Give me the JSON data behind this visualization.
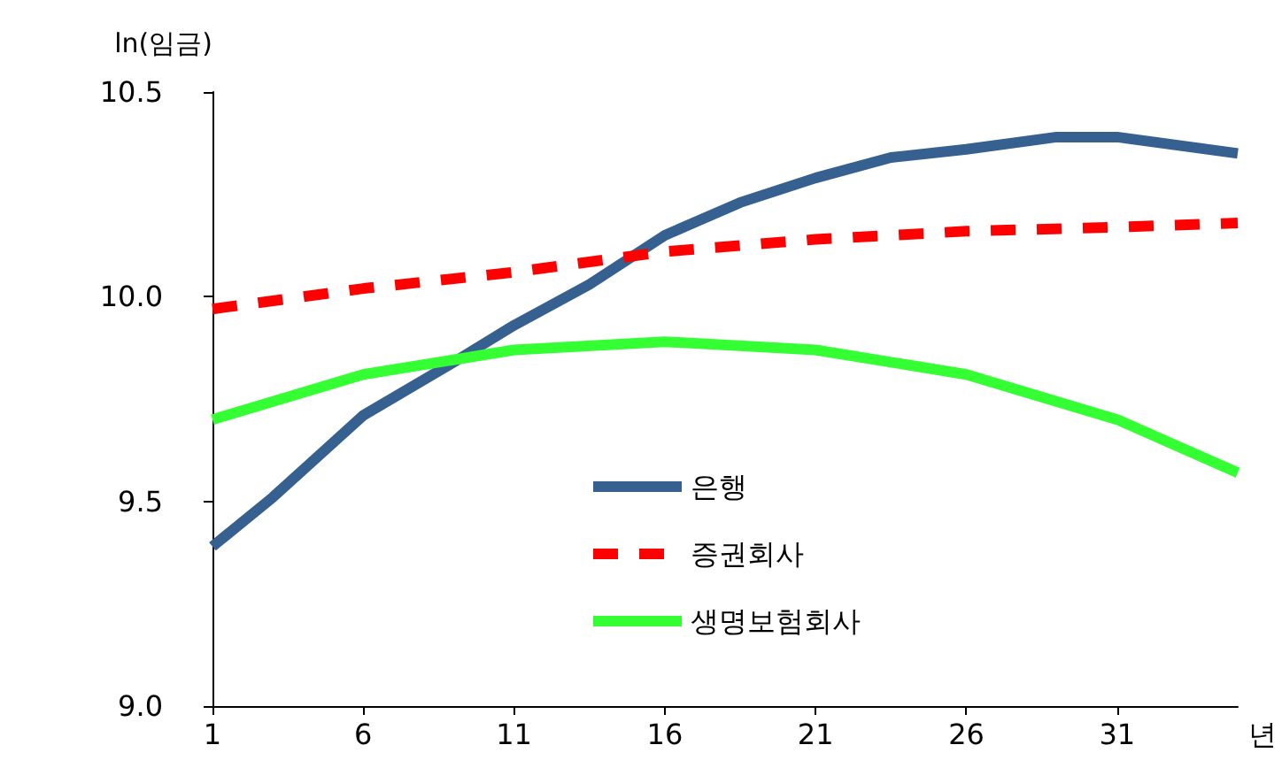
{
  "chart_data": {
    "type": "line",
    "ylabel": "ln(임금)",
    "xlabel": "년",
    "x": [
      1,
      3,
      6,
      9,
      11,
      13.5,
      16,
      18.5,
      21,
      23.5,
      26,
      29,
      31,
      35
    ],
    "series": [
      {
        "name": "은행",
        "color": "#35608f",
        "line_style": "solid",
        "values": [
          9.39,
          9.51,
          9.71,
          9.84,
          9.93,
          10.03,
          10.15,
          10.23,
          10.29,
          10.34,
          10.36,
          10.39,
          10.39,
          10.35
        ]
      },
      {
        "name": "증권회사",
        "color": "#ff0000",
        "line_style": "dashed",
        "x": [
          1,
          6,
          11,
          16,
          21,
          26,
          31,
          35
        ],
        "values": [
          9.97,
          10.02,
          10.06,
          10.11,
          10.14,
          10.16,
          10.17,
          10.18
        ]
      },
      {
        "name": "생명보험회사",
        "color": "#33ff33",
        "line_style": "solid",
        "x": [
          1,
          6,
          11,
          16,
          21,
          26,
          31,
          35
        ],
        "values": [
          9.7,
          9.81,
          9.87,
          9.89,
          9.87,
          9.81,
          9.7,
          9.57
        ]
      }
    ],
    "xlim": [
      1,
      35
    ],
    "xticks": [
      1,
      6,
      11,
      16,
      21,
      26,
      31
    ],
    "ylim": [
      9,
      10.5
    ],
    "yticks": [
      {
        "value": 9,
        "label": "9.0"
      },
      {
        "value": 9.5,
        "label": "9.5"
      },
      {
        "value": 10,
        "label": "10.0"
      },
      {
        "value": 10.5,
        "label": "10.5"
      }
    ],
    "grid": false,
    "legend": "bottom",
    "marker": "none"
  }
}
